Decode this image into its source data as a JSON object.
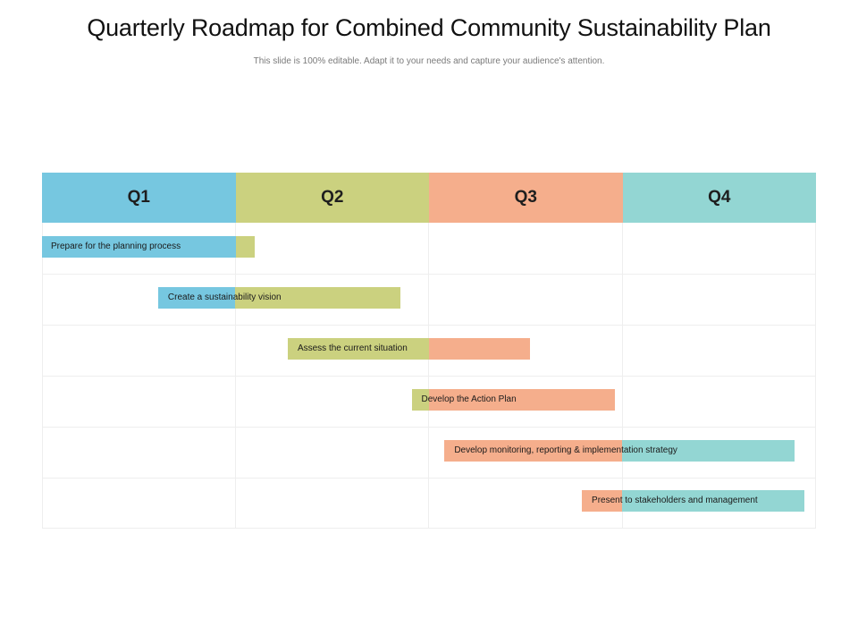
{
  "title": "Quarterly Roadmap for Combined Community Sustainability Plan",
  "subtitle": "This slide is 100% editable. Adapt it to your needs and capture your audience's attention.",
  "colors": {
    "q1": "#76c7e0",
    "q2": "#cbd17f",
    "q3": "#f5ae8c",
    "q4": "#93d6d3"
  },
  "quarters": [
    {
      "label": "Q1",
      "color_key": "q1"
    },
    {
      "label": "Q2",
      "color_key": "q2"
    },
    {
      "label": "Q3",
      "color_key": "q3"
    },
    {
      "label": "Q4",
      "color_key": "q4"
    }
  ],
  "tasks": [
    {
      "label": "Prepare for the planning process",
      "start": 0.0,
      "end": 1.1
    },
    {
      "label": "Create a sustainability vision",
      "start": 0.6,
      "end": 1.85
    },
    {
      "label": "Assess the current situation",
      "start": 1.27,
      "end": 2.52
    },
    {
      "label": "Develop the Action Plan",
      "start": 1.91,
      "end": 2.96
    },
    {
      "label": "Develop monitoring, reporting & implementation  strategy",
      "start": 2.08,
      "end": 3.89
    },
    {
      "label": "Present to stakeholders and management",
      "start": 2.79,
      "end": 3.94
    }
  ]
}
